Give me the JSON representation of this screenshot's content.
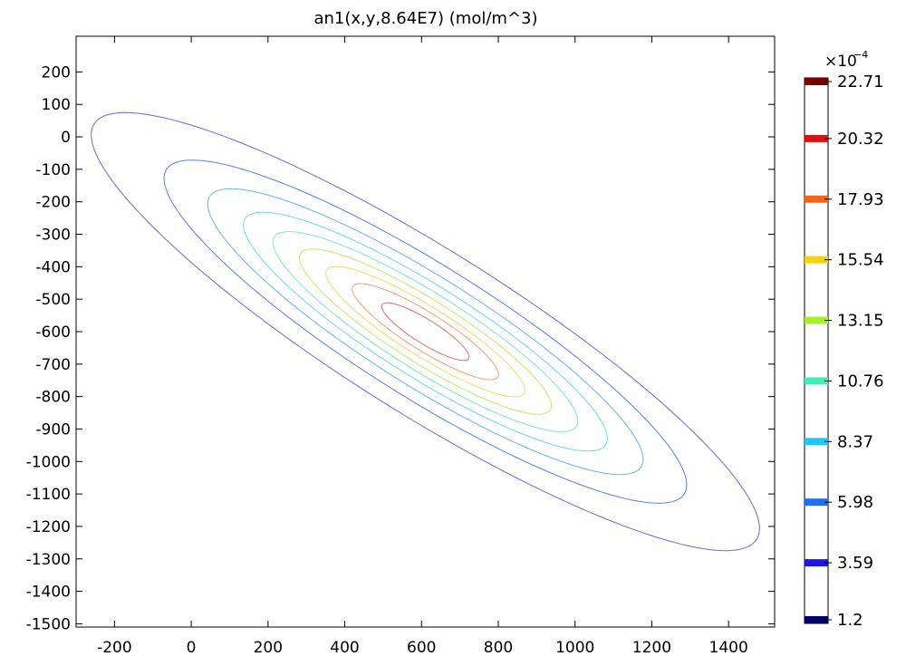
{
  "chart_data": {
    "type": "contour",
    "title": "an1(x,y,8.64E7) (mol/m^3)",
    "xlabel": "",
    "ylabel": "",
    "xlim": [
      -300,
      1520
    ],
    "ylim": [
      -1510,
      310
    ],
    "x_ticks": [
      -200,
      0,
      200,
      400,
      600,
      800,
      1000,
      1200,
      1400
    ],
    "y_ticks": [
      200,
      100,
      0,
      -100,
      -200,
      -300,
      -400,
      -500,
      -600,
      -700,
      -800,
      -900,
      -1000,
      -1100,
      -1200,
      -1300,
      -1400,
      -1500
    ],
    "center": [
      610,
      -600
    ],
    "major_axis_angle_deg": -37,
    "levels": [
      {
        "value": 1.2,
        "label": "1.2",
        "color": "#00006a",
        "semi_axes": [
          1075,
          240
        ]
      },
      {
        "value": 3.59,
        "label": "3.59",
        "color": "#1a1ae6",
        "semi_axes": [
          840,
          193
        ]
      },
      {
        "value": 5.98,
        "label": "5.98",
        "color": "#1f6ff2",
        "semi_axes": [
          700,
          160
        ]
      },
      {
        "value": 8.37,
        "label": "8.37",
        "color": "#1fc8f2",
        "semi_axes": [
          585,
          134
        ]
      },
      {
        "value": 10.76,
        "label": "10.76",
        "color": "#3df0b4",
        "semi_axes": [
          490,
          112
        ]
      },
      {
        "value": 13.15,
        "label": "13.15",
        "color": "#a6ef2e",
        "semi_axes": [
          405,
          92
        ]
      },
      {
        "value": 15.54,
        "label": "15.54",
        "color": "#f5d40a",
        "semi_axes": [
          320,
          72
        ]
      },
      {
        "value": 17.93,
        "label": "17.93",
        "color": "#f2661a",
        "semi_axes": [
          235,
          55
        ]
      },
      {
        "value": 20.32,
        "label": "20.32",
        "color": "#e01010",
        "semi_axes": [
          140,
          35
        ]
      },
      {
        "value": 22.71,
        "label": "22.71",
        "color": "#7a0000",
        "semi_axes": [
          0,
          0
        ]
      }
    ],
    "contour_colors": [
      "#6a6ad6",
      "#5a7ee6",
      "#6ab4f0",
      "#6fd8ee",
      "#7fe8c4",
      "#c6e870",
      "#f0d870",
      "#f0a07a",
      "#e07070"
    ],
    "colorbar": {
      "multiplier": "×10",
      "exponent": "−4",
      "position": "right"
    },
    "grid": false,
    "legend": "colorbar-right"
  }
}
